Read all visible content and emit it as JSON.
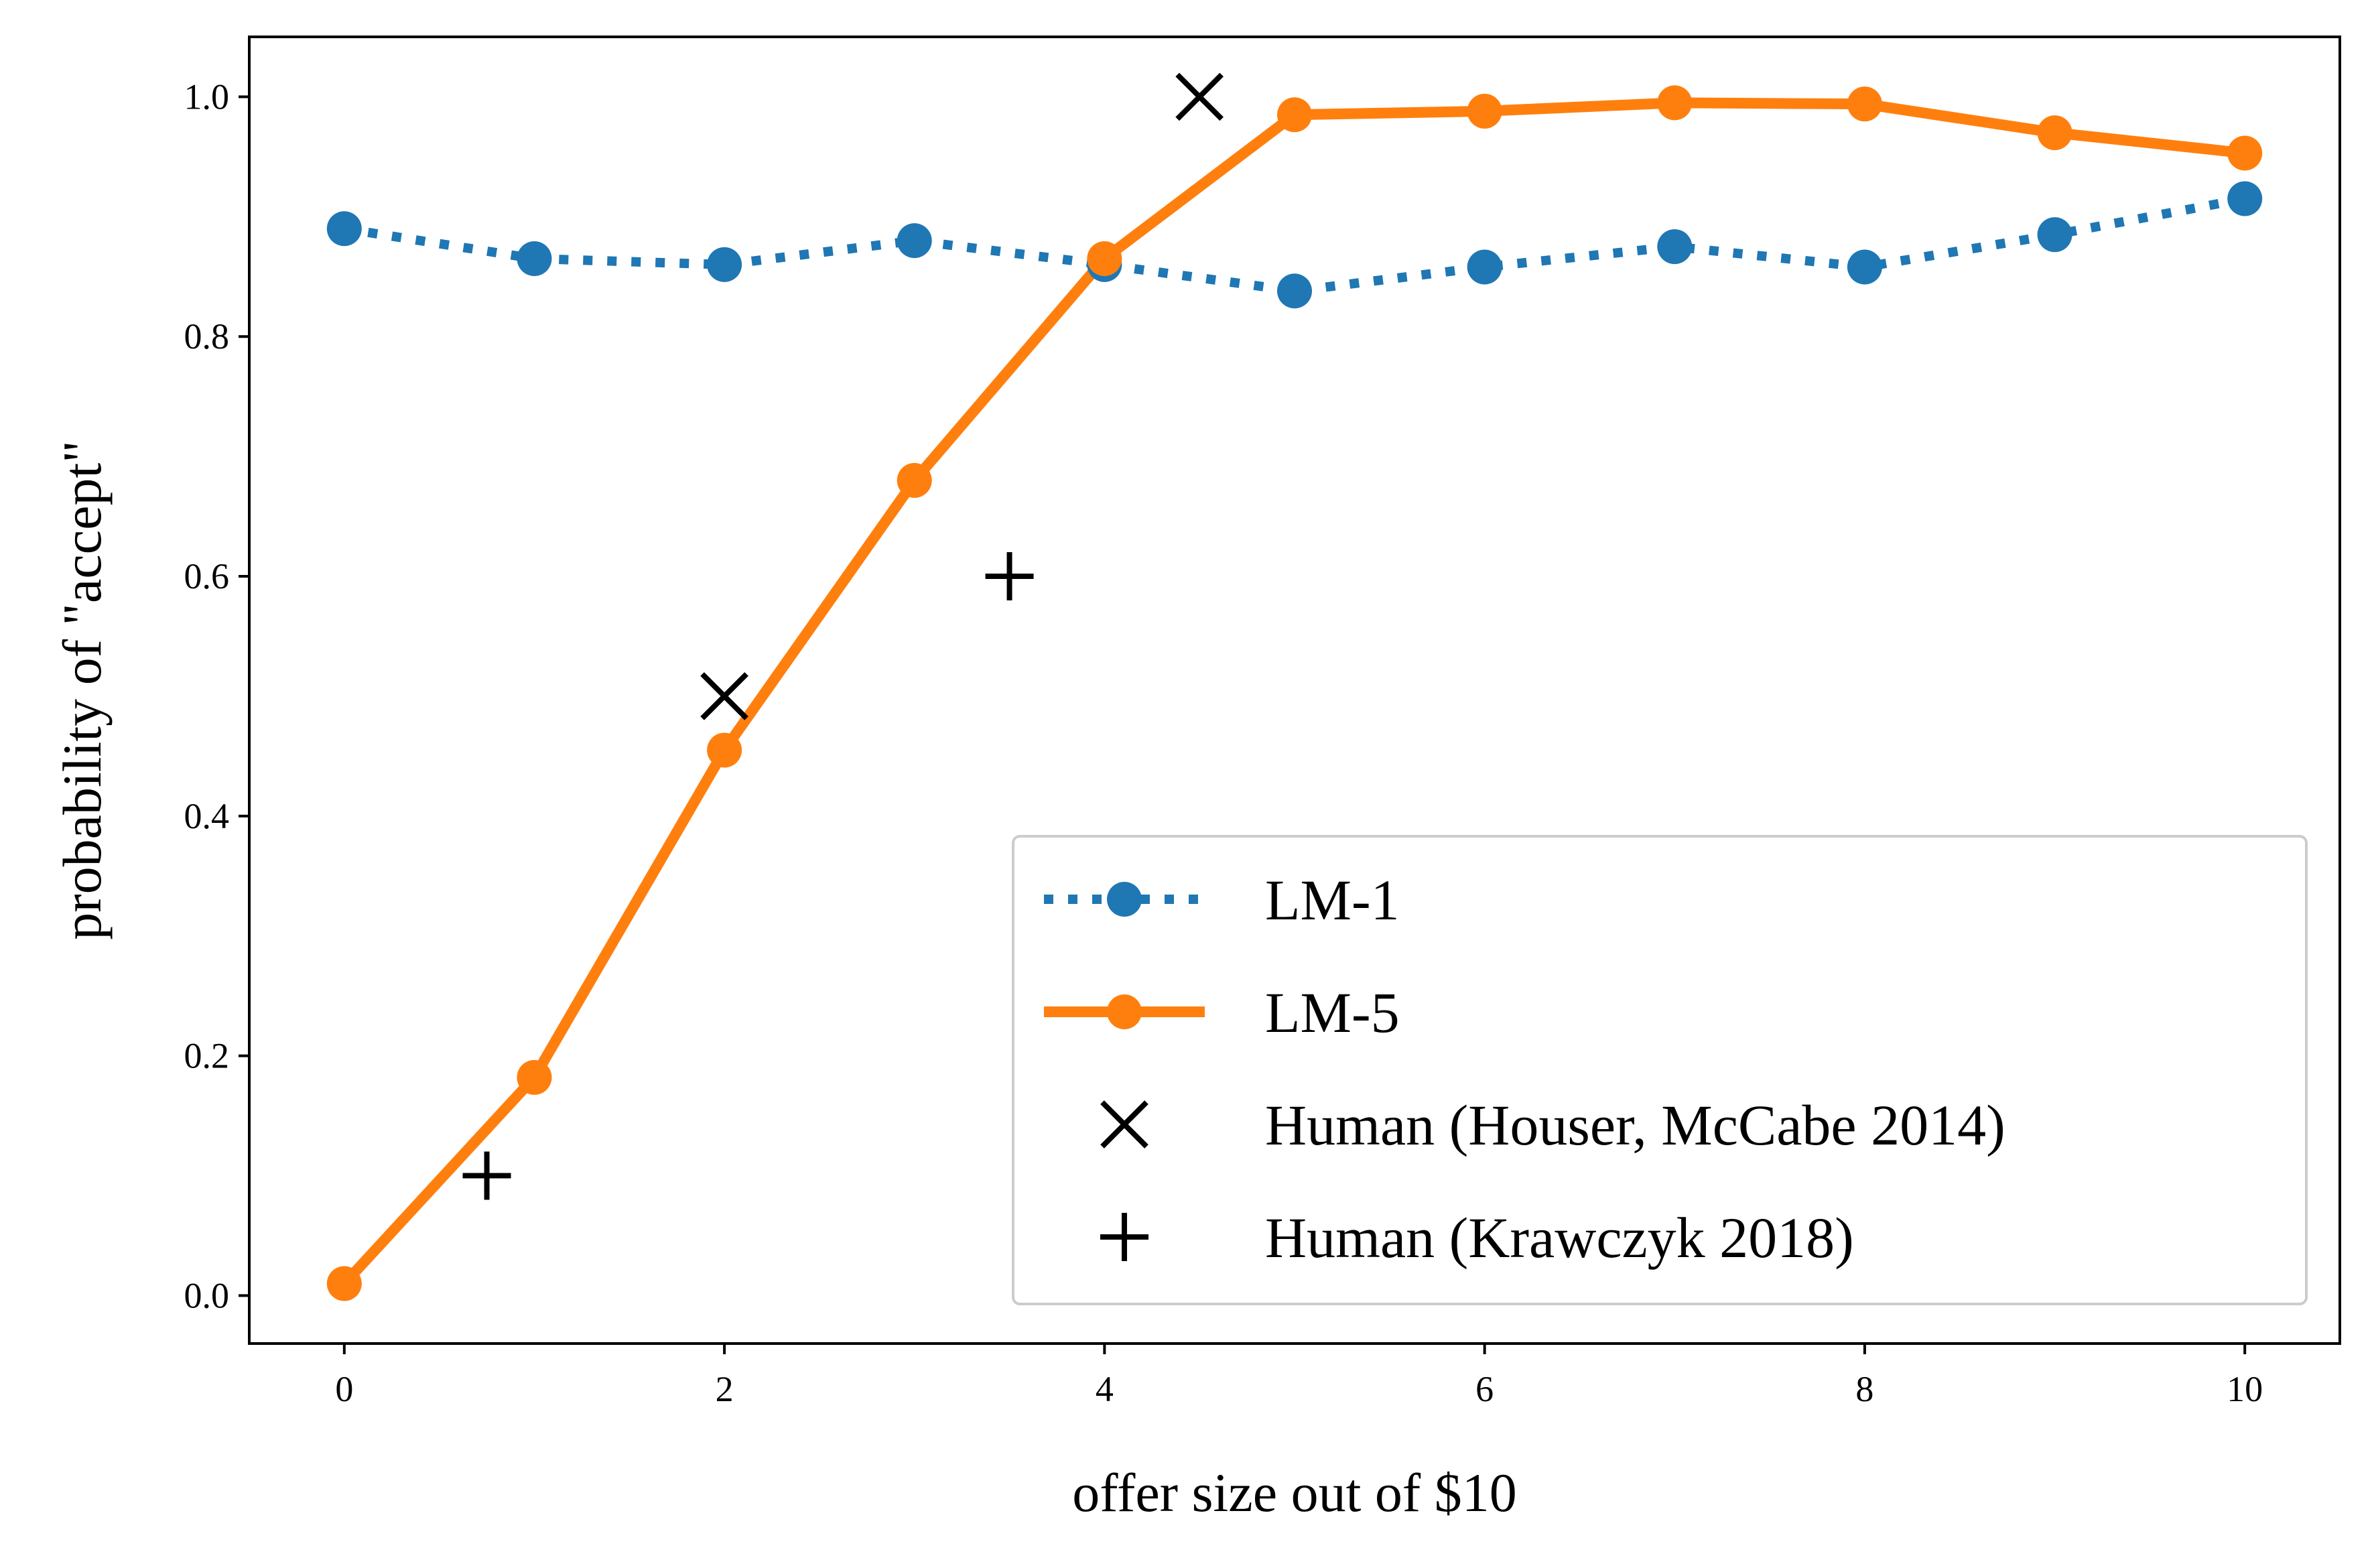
{
  "chart_data": {
    "type": "line",
    "title": "",
    "xlabel": "offer size out of $10",
    "ylabel": "probability of  \"accept\"",
    "xlim": [
      -0.5,
      10.5
    ],
    "ylim": [
      -0.04,
      1.05
    ],
    "xticks": [
      0,
      2,
      4,
      6,
      8,
      10
    ],
    "xtick_labels": [
      "0",
      "2",
      "4",
      "6",
      "8",
      "10"
    ],
    "yticks": [
      0.0,
      0.2,
      0.4,
      0.6,
      0.8,
      1.0
    ],
    "ytick_labels": [
      "0.0",
      "0.2",
      "0.4",
      "0.6",
      "0.8",
      "1.0"
    ],
    "grid": false,
    "legend_position": "lower-right",
    "series": [
      {
        "name": "LM-1",
        "style": "dotted-line-circle-markers",
        "color": "#1f77b4",
        "x": [
          0,
          1,
          2,
          3,
          4,
          5,
          6,
          7,
          8,
          9,
          10
        ],
        "y": [
          0.89,
          0.865,
          0.86,
          0.88,
          0.86,
          0.838,
          0.858,
          0.875,
          0.858,
          0.885,
          0.915
        ]
      },
      {
        "name": "LM-5",
        "style": "solid-line-circle-markers",
        "color": "#ff7f0e",
        "x": [
          0,
          1,
          2,
          3,
          4,
          5,
          6,
          7,
          8,
          9,
          10
        ],
        "y": [
          0.01,
          0.182,
          0.455,
          0.68,
          0.865,
          0.985,
          0.988,
          0.995,
          0.994,
          0.97,
          0.953
        ]
      },
      {
        "name": "Human (Houser, McCabe 2014)",
        "style": "x-markers",
        "color": "#000000",
        "x": [
          2,
          4.5
        ],
        "y": [
          0.5,
          1.0
        ]
      },
      {
        "name": "Human (Krawczyk 2018)",
        "style": "plus-markers",
        "color": "#000000",
        "x": [
          0.75,
          3.5
        ],
        "y": [
          0.1,
          0.6
        ]
      }
    ]
  }
}
